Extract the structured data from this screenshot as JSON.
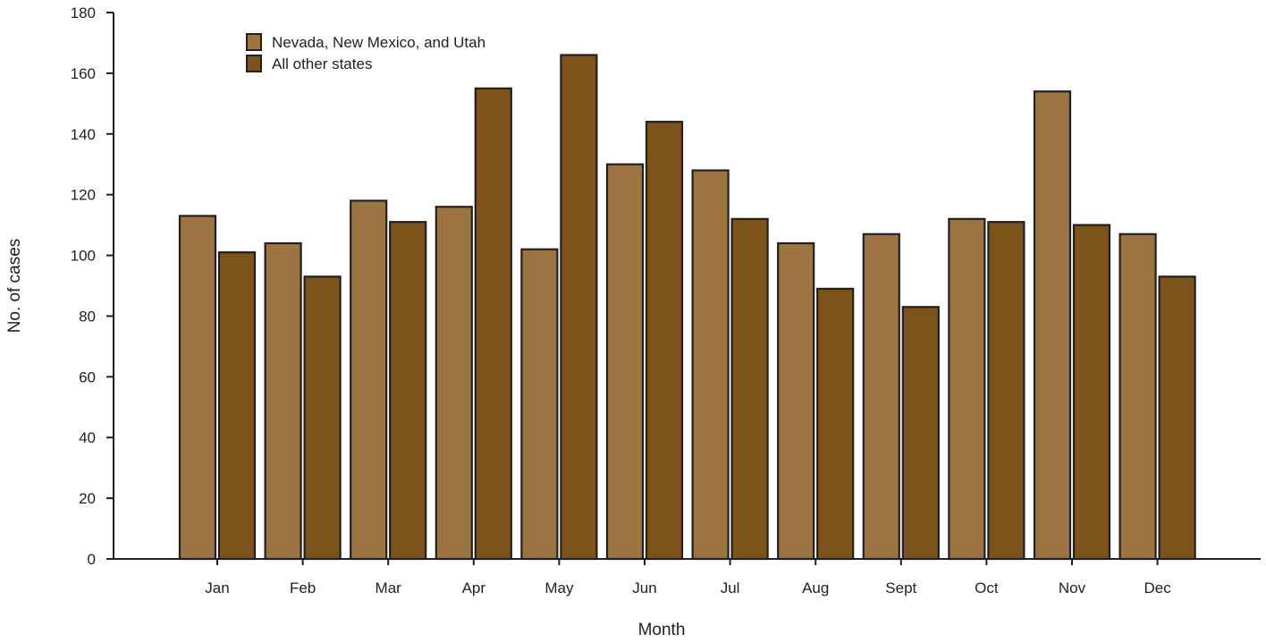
{
  "chart_data": {
    "type": "bar",
    "title": "",
    "xlabel": "Month",
    "ylabel": "No. of cases",
    "ylim": [
      0,
      180
    ],
    "yticks": [
      0,
      20,
      40,
      60,
      80,
      100,
      120,
      140,
      160,
      180
    ],
    "categories": [
      "Jan",
      "Feb",
      "Mar",
      "Apr",
      "May",
      "Jun",
      "Jul",
      "Aug",
      "Sept",
      "Oct",
      "Nov",
      "Dec"
    ],
    "series": [
      {
        "name": "Nevada, New Mexico, and Utah",
        "color": "#9b7442",
        "values": [
          113,
          104,
          118,
          116,
          102,
          130,
          128,
          104,
          107,
          112,
          154,
          107
        ]
      },
      {
        "name": "All other states",
        "color": "#7d531c",
        "values": [
          101,
          93,
          111,
          155,
          166,
          144,
          112,
          89,
          83,
          111,
          110,
          93
        ]
      }
    ],
    "legend_position": "top-left",
    "grid": false,
    "bar_outline_color": "#231f20"
  }
}
